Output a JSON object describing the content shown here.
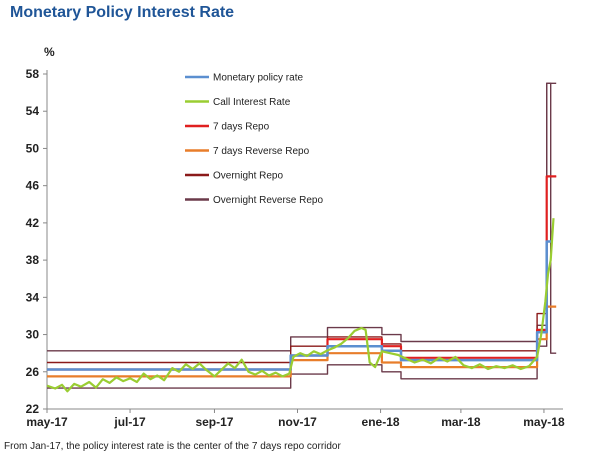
{
  "chart_data": {
    "type": "line",
    "title": "Monetary Policy Interest Rate",
    "ylabel": "%",
    "ylim": [
      22,
      58
    ],
    "yticks": [
      22,
      26,
      30,
      34,
      38,
      42,
      46,
      50,
      54,
      58
    ],
    "xlim": [
      "2017-05-01",
      "2018-05-15"
    ],
    "xticks": [
      {
        "date": "2017-05-01",
        "label": "may-17"
      },
      {
        "date": "2017-07-01",
        "label": "jul-17"
      },
      {
        "date": "2017-09-01",
        "label": "sep-17"
      },
      {
        "date": "2017-11-01",
        "label": "nov-17"
      },
      {
        "date": "2018-01-01",
        "label": "ene-18"
      },
      {
        "date": "2018-03-01",
        "label": "mar-18"
      },
      {
        "date": "2018-05-01",
        "label": "may-18"
      }
    ],
    "legend_position": "top-left",
    "footnote": "From Jan-17, the policy interest rate is the center of the 7 days repo corridor",
    "series": [
      {
        "name": "Monetary policy rate",
        "color": "#5b8fd0",
        "points": [
          [
            "2017-05-01",
            26.25
          ],
          [
            "2017-10-27",
            26.25
          ],
          [
            "2017-10-27",
            27.75
          ],
          [
            "2017-11-23",
            27.75
          ],
          [
            "2017-11-23",
            28.75
          ],
          [
            "2018-01-02",
            28.75
          ],
          [
            "2018-01-02",
            28.25
          ],
          [
            "2018-01-16",
            28.25
          ],
          [
            "2018-01-16",
            27.25
          ],
          [
            "2018-04-26",
            27.25
          ],
          [
            "2018-04-26",
            30.25
          ],
          [
            "2018-05-03",
            30.25
          ],
          [
            "2018-05-03",
            40.0
          ],
          [
            "2018-05-04",
            40.0
          ],
          [
            "2018-05-04",
            40.0
          ],
          [
            "2018-05-07",
            40.0
          ]
        ]
      },
      {
        "name": "Call Interest Rate",
        "color": "#9acd32",
        "points": [
          [
            "2017-05-01",
            24.5
          ],
          [
            "2017-05-07",
            24.2
          ],
          [
            "2017-05-12",
            24.6
          ],
          [
            "2017-05-16",
            23.9
          ],
          [
            "2017-05-21",
            24.7
          ],
          [
            "2017-05-26",
            24.4
          ],
          [
            "2017-06-01",
            24.9
          ],
          [
            "2017-06-06",
            24.3
          ],
          [
            "2017-06-11",
            25.2
          ],
          [
            "2017-06-16",
            24.8
          ],
          [
            "2017-06-21",
            25.4
          ],
          [
            "2017-06-26",
            25.0
          ],
          [
            "2017-07-01",
            25.3
          ],
          [
            "2017-07-06",
            24.9
          ],
          [
            "2017-07-11",
            25.8
          ],
          [
            "2017-07-16",
            25.2
          ],
          [
            "2017-07-21",
            25.6
          ],
          [
            "2017-07-26",
            25.1
          ],
          [
            "2017-08-01",
            26.4
          ],
          [
            "2017-08-06",
            26.0
          ],
          [
            "2017-08-11",
            26.8
          ],
          [
            "2017-08-16",
            26.3
          ],
          [
            "2017-08-21",
            26.9
          ],
          [
            "2017-08-26",
            26.2
          ],
          [
            "2017-09-01",
            25.5
          ],
          [
            "2017-09-06",
            26.2
          ],
          [
            "2017-09-11",
            26.9
          ],
          [
            "2017-09-16",
            26.4
          ],
          [
            "2017-09-21",
            27.3
          ],
          [
            "2017-09-26",
            26.0
          ],
          [
            "2017-10-01",
            25.7
          ],
          [
            "2017-10-06",
            26.1
          ],
          [
            "2017-10-11",
            25.6
          ],
          [
            "2017-10-16",
            25.9
          ],
          [
            "2017-10-21",
            25.5
          ],
          [
            "2017-10-26",
            25.8
          ],
          [
            "2017-10-29",
            27.6
          ],
          [
            "2017-11-03",
            28.0
          ],
          [
            "2017-11-08",
            27.7
          ],
          [
            "2017-11-13",
            28.2
          ],
          [
            "2017-11-18",
            27.9
          ],
          [
            "2017-11-23",
            28.3
          ],
          [
            "2017-11-28",
            28.6
          ],
          [
            "2017-12-03",
            29.0
          ],
          [
            "2017-12-08",
            29.6
          ],
          [
            "2017-12-13",
            30.4
          ],
          [
            "2017-12-18",
            30.7
          ],
          [
            "2017-12-21",
            30.5
          ],
          [
            "2017-12-24",
            27.0
          ],
          [
            "2017-12-28",
            26.5
          ],
          [
            "2018-01-02",
            28.2
          ],
          [
            "2018-01-08",
            28.0
          ],
          [
            "2018-01-14",
            27.8
          ],
          [
            "2018-01-20",
            27.4
          ],
          [
            "2018-01-26",
            27.0
          ],
          [
            "2018-02-01",
            27.3
          ],
          [
            "2018-02-07",
            26.9
          ],
          [
            "2018-02-13",
            27.5
          ],
          [
            "2018-02-19",
            27.1
          ],
          [
            "2018-02-25",
            27.6
          ],
          [
            "2018-03-03",
            26.7
          ],
          [
            "2018-03-09",
            26.4
          ],
          [
            "2018-03-15",
            26.8
          ],
          [
            "2018-03-21",
            26.3
          ],
          [
            "2018-03-27",
            26.6
          ],
          [
            "2018-04-02",
            26.4
          ],
          [
            "2018-04-08",
            26.7
          ],
          [
            "2018-04-14",
            26.3
          ],
          [
            "2018-04-20",
            26.6
          ],
          [
            "2018-04-26",
            27.6
          ],
          [
            "2018-04-29",
            30.0
          ],
          [
            "2018-05-02",
            33.5
          ],
          [
            "2018-05-04",
            36.5
          ],
          [
            "2018-05-06",
            38.0
          ],
          [
            "2018-05-08",
            42.5
          ]
        ]
      },
      {
        "name": "7 days Repo",
        "color": "#e02020",
        "points": [
          [
            "2017-05-01",
            26.25
          ],
          [
            "2017-10-27",
            26.25
          ],
          [
            "2017-10-27",
            27.75
          ],
          [
            "2017-11-23",
            27.75
          ],
          [
            "2017-11-23",
            29.5
          ],
          [
            "2018-01-02",
            29.5
          ],
          [
            "2018-01-02",
            28.75
          ],
          [
            "2018-01-16",
            28.75
          ],
          [
            "2018-01-16",
            27.5
          ],
          [
            "2018-04-26",
            27.5
          ],
          [
            "2018-04-26",
            30.5
          ],
          [
            "2018-05-03",
            30.5
          ],
          [
            "2018-05-03",
            47.0
          ],
          [
            "2018-05-10",
            47.0
          ]
        ]
      },
      {
        "name": "7 days Reverse Repo",
        "color": "#e87d2a",
        "points": [
          [
            "2017-05-01",
            25.5
          ],
          [
            "2017-10-27",
            25.5
          ],
          [
            "2017-10-27",
            27.25
          ],
          [
            "2017-11-23",
            27.25
          ],
          [
            "2017-11-23",
            28.0
          ],
          [
            "2018-01-02",
            28.0
          ],
          [
            "2018-01-02",
            27.0
          ],
          [
            "2018-01-16",
            27.0
          ],
          [
            "2018-01-16",
            26.5
          ],
          [
            "2018-04-26",
            26.5
          ],
          [
            "2018-04-26",
            29.5
          ],
          [
            "2018-05-03",
            29.5
          ],
          [
            "2018-05-03",
            33.0
          ],
          [
            "2018-05-10",
            33.0
          ]
        ]
      },
      {
        "name": "Overnight Repo",
        "color": "#8b1a1a",
        "points": [
          [
            "2017-05-01",
            27.0
          ],
          [
            "2017-10-27",
            27.0
          ],
          [
            "2017-10-27",
            28.75
          ],
          [
            "2017-11-23",
            28.75
          ],
          [
            "2017-11-23",
            29.75
          ],
          [
            "2018-01-02",
            29.75
          ],
          [
            "2018-01-02",
            29.0
          ],
          [
            "2018-01-16",
            29.0
          ],
          [
            "2018-01-16",
            28.25
          ],
          [
            "2018-04-26",
            28.25
          ],
          [
            "2018-04-26",
            32.25
          ],
          [
            "2018-05-03",
            32.25
          ],
          [
            "2018-05-03",
            47.0
          ],
          [
            "2018-05-10",
            47.0
          ]
        ]
      },
      {
        "name": "Overnight Reverse Repo",
        "color": "#6b3a4a",
        "points": [
          [
            "2017-05-01",
            24.25
          ],
          [
            "2017-10-27",
            24.25
          ],
          [
            "2017-10-27",
            25.75
          ],
          [
            "2017-11-23",
            25.75
          ],
          [
            "2017-11-23",
            26.75
          ],
          [
            "2018-01-02",
            26.75
          ],
          [
            "2018-01-02",
            26.0
          ],
          [
            "2018-01-16",
            26.0
          ],
          [
            "2018-01-16",
            25.25
          ],
          [
            "2018-04-26",
            25.25
          ],
          [
            "2018-04-26",
            28.75
          ],
          [
            "2018-05-03",
            28.75
          ],
          [
            "2018-05-03",
            57.0
          ],
          [
            "2018-05-06",
            57.0
          ],
          [
            "2018-05-06",
            28.0
          ],
          [
            "2018-05-10",
            28.0
          ]
        ]
      },
      {
        "name": "",
        "color": "#6b3a4a",
        "points": [
          [
            "2017-05-01",
            28.25
          ],
          [
            "2017-10-27",
            28.25
          ],
          [
            "2017-10-27",
            29.75
          ],
          [
            "2017-11-23",
            29.75
          ],
          [
            "2017-11-23",
            30.75
          ],
          [
            "2018-01-02",
            30.75
          ],
          [
            "2018-01-02",
            30.0
          ],
          [
            "2018-01-16",
            30.0
          ],
          [
            "2018-01-16",
            29.25
          ],
          [
            "2018-04-26",
            29.25
          ],
          [
            "2018-04-26",
            31.0
          ],
          [
            "2018-05-03",
            31.0
          ],
          [
            "2018-05-03",
            57.0
          ],
          [
            "2018-05-10",
            57.0
          ]
        ]
      }
    ]
  }
}
